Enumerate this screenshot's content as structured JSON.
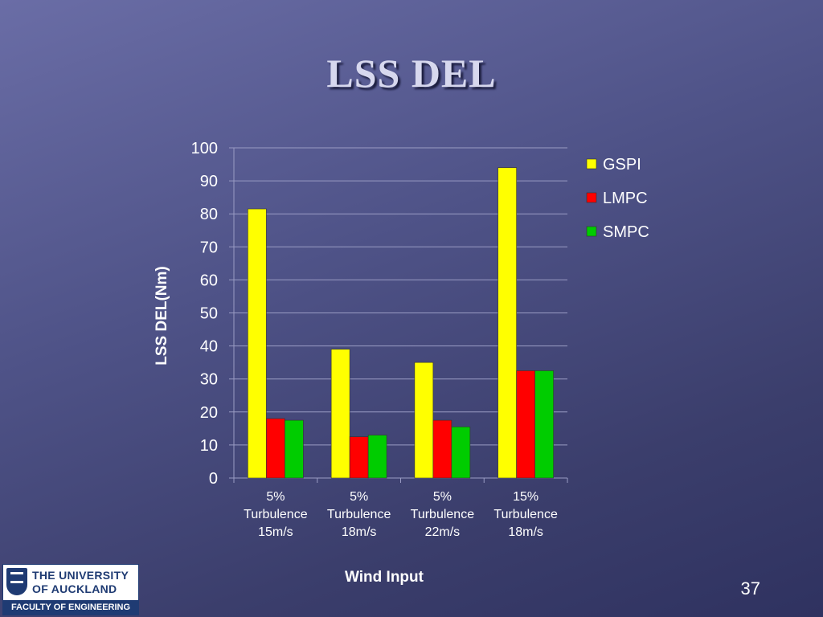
{
  "slide": {
    "title": "LSS DEL",
    "number": "37"
  },
  "logo": {
    "line1": "THE UNIVERSITY",
    "line2": "OF AUCKLAND",
    "faculty": "FACULTY OF ENGINEERING"
  },
  "chart_data": {
    "type": "bar",
    "xlabel": "Wind Input",
    "ylabel": "LSS DEL(Nm)",
    "ylim": [
      0,
      100
    ],
    "yticks": [
      0,
      10,
      20,
      30,
      40,
      50,
      60,
      70,
      80,
      90,
      100
    ],
    "grid": true,
    "legend_position": "right",
    "categories": [
      [
        "5%",
        "Turbulence",
        "15m/s"
      ],
      [
        "5%",
        "Turbulence",
        "18m/s"
      ],
      [
        "5%",
        "Turbulence",
        "22m/s"
      ],
      [
        "15%",
        "Turbulence",
        "18m/s"
      ]
    ],
    "series": [
      {
        "name": "GSPI",
        "color": "#ffff00",
        "values": [
          81.5,
          39,
          35,
          94
        ]
      },
      {
        "name": "LMPC",
        "color": "#ff0000",
        "values": [
          18,
          12.5,
          17.5,
          32.5
        ]
      },
      {
        "name": "SMPC",
        "color": "#00cc00",
        "values": [
          17.5,
          13,
          15.5,
          32.5
        ]
      }
    ]
  }
}
